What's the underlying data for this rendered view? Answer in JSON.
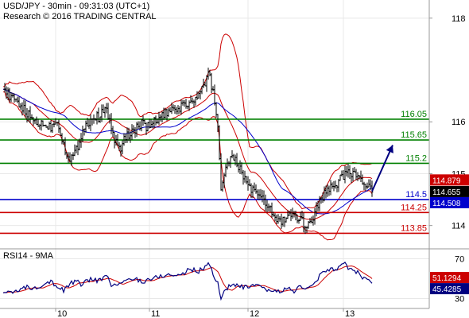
{
  "chart_data": [
    {
      "type": "line",
      "title": "USD/JPY - 30min - 09:31:03 (UTC+1)",
      "subtitle": "Research © 2016 TRADING CENTRAL",
      "ylim": [
        113.55,
        118.35
      ],
      "yticks": [
        "118",
        "116",
        "115",
        "114"
      ],
      "ytick_values": [
        118,
        116,
        115,
        114
      ],
      "xticks": [
        {
          "label": "10",
          "t": 70
        },
        {
          "label": "11",
          "t": 188
        },
        {
          "label": "12",
          "t": 312
        },
        {
          "label": "13",
          "t": 432
        }
      ],
      "xrange": [
        0,
        540
      ],
      "grid": true,
      "levels": [
        {
          "value": 116.05,
          "label": "116.05",
          "color": "#008000"
        },
        {
          "value": 115.65,
          "label": "115.65",
          "color": "#008000"
        },
        {
          "value": 115.2,
          "label": "115.2",
          "color": "#008000"
        },
        {
          "value": 114.5,
          "label": "114.5",
          "color": "#0000cc"
        },
        {
          "value": 114.25,
          "label": "114.25",
          "color": "#cc0000"
        },
        {
          "value": 113.85,
          "label": "113.85",
          "color": "#cc0000"
        }
      ],
      "tags": [
        {
          "value": 114.879,
          "label": "114.879",
          "color": "#cc0000"
        },
        {
          "value": 114.655,
          "label": "114.655",
          "color": "#000000"
        },
        {
          "value": 114.508,
          "label": "114.508",
          "color": "#0000cc"
        }
      ],
      "price_keys": [
        [
          4,
          116.65
        ],
        [
          14,
          116.45
        ],
        [
          24,
          116.35
        ],
        [
          34,
          116.15
        ],
        [
          44,
          116.0
        ],
        [
          54,
          115.95
        ],
        [
          64,
          115.9
        ],
        [
          72,
          116.05
        ],
        [
          80,
          115.55
        ],
        [
          88,
          115.25
        ],
        [
          96,
          115.45
        ],
        [
          104,
          115.85
        ],
        [
          114,
          116.05
        ],
        [
          124,
          116.1
        ],
        [
          134,
          116.25
        ],
        [
          142,
          115.75
        ],
        [
          150,
          115.45
        ],
        [
          158,
          115.7
        ],
        [
          168,
          115.85
        ],
        [
          178,
          115.95
        ],
        [
          188,
          115.9
        ],
        [
          198,
          116.05
        ],
        [
          208,
          116.15
        ],
        [
          218,
          116.2
        ],
        [
          228,
          116.3
        ],
        [
          238,
          116.35
        ],
        [
          248,
          116.45
        ],
        [
          256,
          116.65
        ],
        [
          262,
          116.95
        ],
        [
          268,
          116.6
        ],
        [
          274,
          115.9
        ],
        [
          278,
          114.7
        ],
        [
          284,
          115.15
        ],
        [
          290,
          115.3
        ],
        [
          298,
          115.2
        ],
        [
          306,
          114.95
        ],
        [
          314,
          114.75
        ],
        [
          322,
          114.6
        ],
        [
          330,
          114.5
        ],
        [
          338,
          114.35
        ],
        [
          346,
          114.15
        ],
        [
          354,
          114.05
        ],
        [
          362,
          114.2
        ],
        [
          370,
          114.15
        ],
        [
          378,
          114.1
        ],
        [
          386,
          114.0
        ],
        [
          394,
          114.15
        ],
        [
          402,
          114.5
        ],
        [
          410,
          114.65
        ],
        [
          418,
          114.75
        ],
        [
          426,
          114.85
        ],
        [
          434,
          115.0
        ],
        [
          440,
          115.05
        ],
        [
          448,
          114.95
        ],
        [
          456,
          114.85
        ],
        [
          462,
          114.75
        ],
        [
          468,
          114.66
        ]
      ],
      "projection": {
        "from": [
          468,
          114.66
        ],
        "to": [
          494,
          115.55
        ]
      }
    },
    {
      "type": "line",
      "title": "RSI14 - 9MA",
      "ylim": [
        20,
        80
      ],
      "yticks": [
        "70",
        "30"
      ],
      "ytick_values": [
        70,
        30
      ],
      "tags": [
        {
          "value": 51.1294,
          "label": "51.1294",
          "color": "#cc0000"
        },
        {
          "value": 45.4285,
          "label": "45.4285",
          "color": "#000080"
        }
      ],
      "rsi_keys": [
        [
          4,
          36
        ],
        [
          14,
          38
        ],
        [
          24,
          37
        ],
        [
          34,
          42
        ],
        [
          44,
          40
        ],
        [
          54,
          45
        ],
        [
          64,
          48
        ],
        [
          72,
          42
        ],
        [
          80,
          38
        ],
        [
          88,
          45
        ],
        [
          96,
          47
        ],
        [
          104,
          44
        ],
        [
          114,
          50
        ],
        [
          124,
          48
        ],
        [
          134,
          52
        ],
        [
          142,
          42
        ],
        [
          150,
          45
        ],
        [
          160,
          48
        ],
        [
          170,
          50
        ],
        [
          180,
          47
        ],
        [
          190,
          50
        ],
        [
          200,
          52
        ],
        [
          210,
          54
        ],
        [
          220,
          53
        ],
        [
          230,
          55
        ],
        [
          240,
          60
        ],
        [
          248,
          57
        ],
        [
          256,
          60
        ],
        [
          262,
          67
        ],
        [
          268,
          55
        ],
        [
          274,
          45
        ],
        [
          278,
          30
        ],
        [
          284,
          40
        ],
        [
          292,
          44
        ],
        [
          300,
          42
        ],
        [
          310,
          41
        ],
        [
          320,
          43
        ],
        [
          330,
          40
        ],
        [
          340,
          38
        ],
        [
          350,
          37
        ],
        [
          360,
          40
        ],
        [
          370,
          38
        ],
        [
          380,
          42
        ],
        [
          388,
          40
        ],
        [
          396,
          45
        ],
        [
          404,
          55
        ],
        [
          412,
          58
        ],
        [
          420,
          60
        ],
        [
          428,
          62
        ],
        [
          434,
          64
        ],
        [
          440,
          60
        ],
        [
          448,
          57
        ],
        [
          456,
          52
        ],
        [
          462,
          48
        ],
        [
          468,
          45.4
        ]
      ]
    }
  ]
}
